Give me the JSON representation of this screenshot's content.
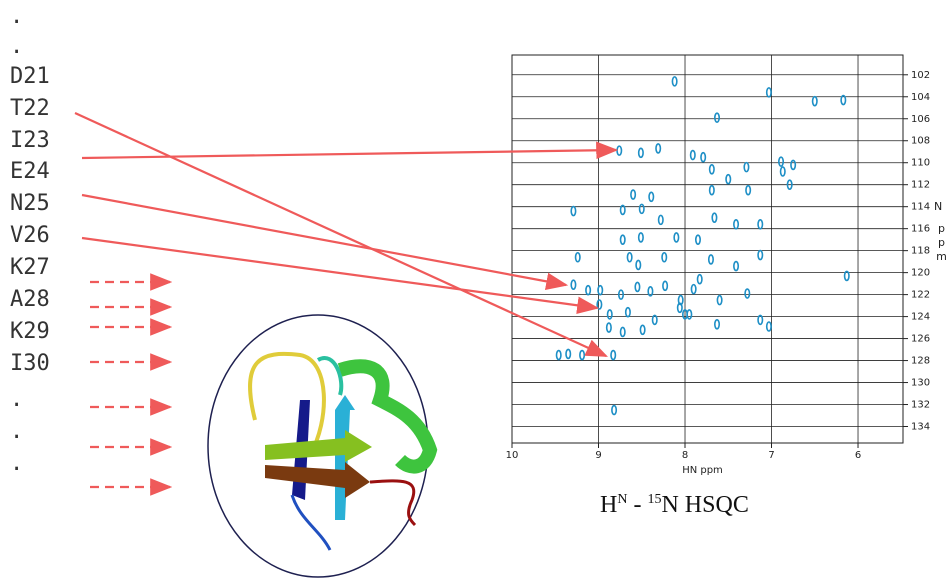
{
  "residues": [
    ".",
    ".",
    "D21",
    "T22",
    "I23",
    "E24",
    "N25",
    "V26",
    "K27",
    "A28",
    "K29",
    "I30",
    ".",
    ".",
    "."
  ],
  "spectrum": {
    "x_label": "HN ppm",
    "y_nucleus": "N",
    "y_label": "ppm",
    "xlim": [
      10,
      5.48
    ],
    "ylim": [
      100.2,
      135.5
    ],
    "xticks": [
      10,
      9,
      8,
      7,
      6
    ],
    "yticks": [
      102,
      104,
      106,
      108,
      110,
      112,
      114,
      116,
      118,
      120,
      122,
      124,
      126,
      128,
      130,
      132,
      134
    ],
    "peaks": [
      {
        "x": 8.12,
        "y": 102.6
      },
      {
        "x": 7.03,
        "y": 103.6
      },
      {
        "x": 6.5,
        "y": 104.4
      },
      {
        "x": 6.17,
        "y": 104.3
      },
      {
        "x": 7.63,
        "y": 105.9
      },
      {
        "x": 8.76,
        "y": 108.9
      },
      {
        "x": 8.51,
        "y": 109.1
      },
      {
        "x": 8.31,
        "y": 108.7
      },
      {
        "x": 7.91,
        "y": 109.3
      },
      {
        "x": 7.79,
        "y": 109.5
      },
      {
        "x": 7.69,
        "y": 110.6
      },
      {
        "x": 7.5,
        "y": 111.5
      },
      {
        "x": 7.29,
        "y": 110.4
      },
      {
        "x": 6.89,
        "y": 109.9
      },
      {
        "x": 6.87,
        "y": 110.8
      },
      {
        "x": 6.75,
        "y": 110.2
      },
      {
        "x": 6.79,
        "y": 112.0
      },
      {
        "x": 7.27,
        "y": 112.5
      },
      {
        "x": 7.69,
        "y": 112.5
      },
      {
        "x": 8.6,
        "y": 112.9
      },
      {
        "x": 8.39,
        "y": 113.1
      },
      {
        "x": 9.29,
        "y": 114.4
      },
      {
        "x": 8.72,
        "y": 114.3
      },
      {
        "x": 8.5,
        "y": 114.2
      },
      {
        "x": 8.28,
        "y": 115.2
      },
      {
        "x": 7.66,
        "y": 115.0
      },
      {
        "x": 7.41,
        "y": 115.6
      },
      {
        "x": 7.13,
        "y": 115.6
      },
      {
        "x": 8.72,
        "y": 117.0
      },
      {
        "x": 8.51,
        "y": 116.8
      },
      {
        "x": 8.1,
        "y": 116.8
      },
      {
        "x": 7.85,
        "y": 117.0
      },
      {
        "x": 9.24,
        "y": 118.6
      },
      {
        "x": 8.64,
        "y": 118.6
      },
      {
        "x": 8.54,
        "y": 119.3
      },
      {
        "x": 8.24,
        "y": 118.6
      },
      {
        "x": 7.7,
        "y": 118.8
      },
      {
        "x": 7.41,
        "y": 119.4
      },
      {
        "x": 7.13,
        "y": 118.4
      },
      {
        "x": 6.13,
        "y": 120.3
      },
      {
        "x": 9.29,
        "y": 121.1
      },
      {
        "x": 9.12,
        "y": 121.6
      },
      {
        "x": 8.74,
        "y": 122.0
      },
      {
        "x": 8.55,
        "y": 121.3
      },
      {
        "x": 8.4,
        "y": 121.7
      },
      {
        "x": 8.23,
        "y": 121.2
      },
      {
        "x": 8.05,
        "y": 122.5
      },
      {
        "x": 8.0,
        "y": 123.8
      },
      {
        "x": 7.9,
        "y": 121.5
      },
      {
        "x": 7.28,
        "y": 121.9
      },
      {
        "x": 8.99,
        "y": 122.9
      },
      {
        "x": 8.87,
        "y": 123.8
      },
      {
        "x": 8.66,
        "y": 123.6
      },
      {
        "x": 8.35,
        "y": 124.3
      },
      {
        "x": 8.06,
        "y": 123.2
      },
      {
        "x": 7.63,
        "y": 124.7
      },
      {
        "x": 7.13,
        "y": 124.3
      },
      {
        "x": 7.03,
        "y": 124.9
      },
      {
        "x": 8.88,
        "y": 125.0
      },
      {
        "x": 8.72,
        "y": 125.4
      },
      {
        "x": 8.49,
        "y": 125.2
      },
      {
        "x": 9.46,
        "y": 127.5
      },
      {
        "x": 9.35,
        "y": 127.4
      },
      {
        "x": 9.19,
        "y": 127.5
      },
      {
        "x": 8.83,
        "y": 127.5
      },
      {
        "x": 8.82,
        "y": 132.5
      },
      {
        "x": 7.95,
        "y": 123.8
      },
      {
        "x": 7.83,
        "y": 120.6
      },
      {
        "x": 7.6,
        "y": 122.5
      },
      {
        "x": 8.98,
        "y": 121.6
      }
    ]
  },
  "caption": [
    "H",
    "N",
    " - ",
    "15",
    "N HSQC"
  ]
}
